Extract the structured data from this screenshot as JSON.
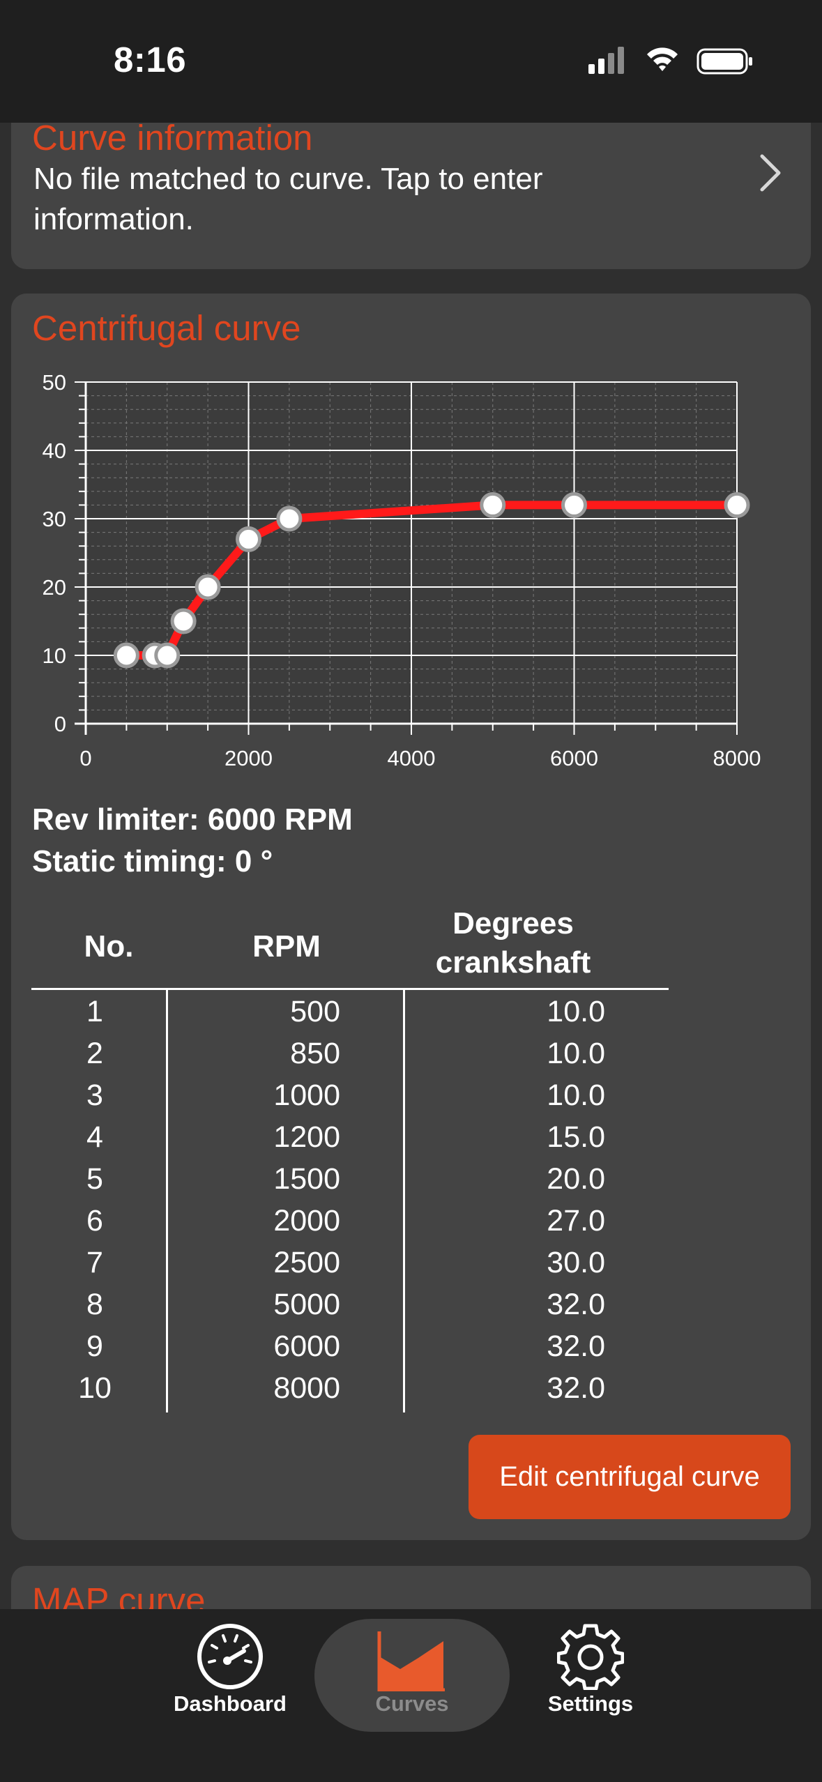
{
  "status_bar": {
    "time": "8:16"
  },
  "curve_information": {
    "title": "Curve information",
    "text": "No file matched to curve. Tap to enter information."
  },
  "centrifugal": {
    "title": "Centrifugal curve",
    "rev_limiter": "Rev limiter: 6000 RPM",
    "static_timing": "Static timing: 0 °",
    "table": {
      "headers": {
        "no": "No.",
        "rpm": "RPM",
        "deg": "Degrees crankshaft"
      },
      "rows": [
        {
          "no": "1",
          "rpm": "500",
          "deg": "10.0"
        },
        {
          "no": "2",
          "rpm": "850",
          "deg": "10.0"
        },
        {
          "no": "3",
          "rpm": "1000",
          "deg": "10.0"
        },
        {
          "no": "4",
          "rpm": "1200",
          "deg": "15.0"
        },
        {
          "no": "5",
          "rpm": "1500",
          "deg": "20.0"
        },
        {
          "no": "6",
          "rpm": "2000",
          "deg": "27.0"
        },
        {
          "no": "7",
          "rpm": "2500",
          "deg": "30.0"
        },
        {
          "no": "8",
          "rpm": "5000",
          "deg": "32.0"
        },
        {
          "no": "9",
          "rpm": "6000",
          "deg": "32.0"
        },
        {
          "no": "10",
          "rpm": "8000",
          "deg": "32.0"
        }
      ]
    },
    "edit_button": "Edit centrifugal curve"
  },
  "map_curve": {
    "title": "MAP curve"
  },
  "tabbar": {
    "tabs": [
      {
        "label": "Dashboard",
        "icon": "speedometer-icon",
        "active": false
      },
      {
        "label": "Curves",
        "icon": "curves-icon",
        "active": true
      },
      {
        "label": "Settings",
        "icon": "gear-icon",
        "active": false
      }
    ]
  },
  "colors": {
    "accent": "#e0461f",
    "button": "#d7481b",
    "curve_line": "#ff1a1a",
    "card": "#444444"
  },
  "chart_data": {
    "type": "line",
    "x": [
      500,
      850,
      1000,
      1200,
      1500,
      2000,
      2500,
      5000,
      6000,
      8000
    ],
    "series": [
      {
        "values": [
          10,
          10,
          10,
          15,
          20,
          27,
          30,
          32,
          32,
          32
        ]
      }
    ],
    "xlim": [
      0,
      8000
    ],
    "ylim": [
      0,
      50
    ],
    "xticks": [
      "0",
      "2000",
      "4000",
      "6000",
      "8000"
    ],
    "yticks": [
      "0",
      "10",
      "20",
      "30",
      "40",
      "50"
    ],
    "grid": true
  }
}
